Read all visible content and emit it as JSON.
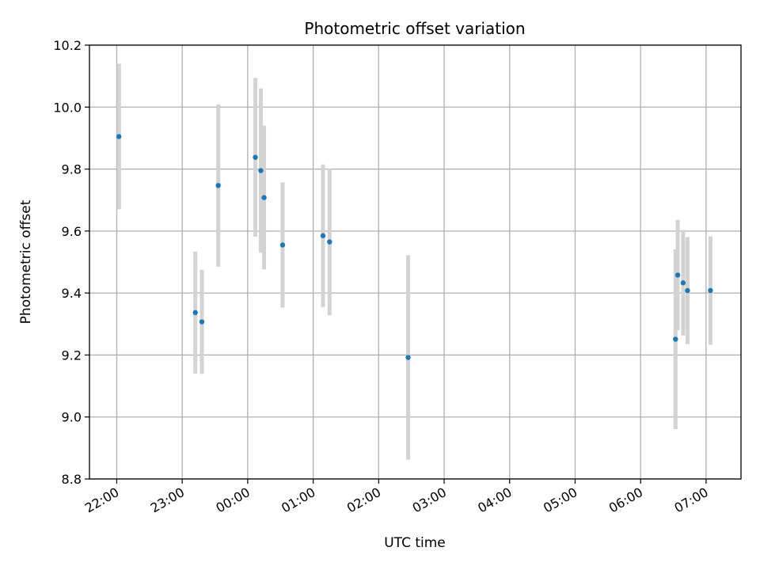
{
  "chart_data": {
    "type": "scatter",
    "title": "Photometric offset variation",
    "xlabel": "UTC time",
    "ylabel": "Photometric offset",
    "x_ticks": [
      "22:00",
      "23:00",
      "00:00",
      "01:00",
      "02:00",
      "03:00",
      "04:00",
      "05:00",
      "06:00",
      "07:00"
    ],
    "y_ticks": [
      "8.8",
      "9.0",
      "9.2",
      "9.4",
      "9.6",
      "9.8",
      "10.0",
      "10.2"
    ],
    "xlim": [
      "21:35",
      "07:32"
    ],
    "ylim": [
      8.8,
      10.2
    ],
    "grid": true,
    "point_color": "#1f77b4",
    "errorbar_color": "#d3d3d3",
    "points": [
      {
        "x": "22:02",
        "y": 9.905,
        "err": 0.235
      },
      {
        "x": "23:12",
        "y": 9.337,
        "err": 0.197
      },
      {
        "x": "23:18",
        "y": 9.307,
        "err": 0.168
      },
      {
        "x": "23:33",
        "y": 9.747,
        "err": 0.262
      },
      {
        "x": "00:07",
        "y": 9.838,
        "err": 0.256
      },
      {
        "x": "00:12",
        "y": 9.795,
        "err": 0.265
      },
      {
        "x": "00:15",
        "y": 9.708,
        "err": 0.232
      },
      {
        "x": "00:32",
        "y": 9.555,
        "err": 0.202
      },
      {
        "x": "01:09",
        "y": 9.585,
        "err": 0.23
      },
      {
        "x": "01:15",
        "y": 9.565,
        "err": 0.237
      },
      {
        "x": "02:27",
        "y": 9.192,
        "err": 0.33
      },
      {
        "x": "06:32",
        "y": 9.251,
        "err": 0.29
      },
      {
        "x": "06:34",
        "y": 9.458,
        "err": 0.178
      },
      {
        "x": "06:39",
        "y": 9.433,
        "err": 0.17
      },
      {
        "x": "06:43",
        "y": 9.408,
        "err": 0.173
      },
      {
        "x": "07:04",
        "y": 9.408,
        "err": 0.175
      }
    ]
  }
}
